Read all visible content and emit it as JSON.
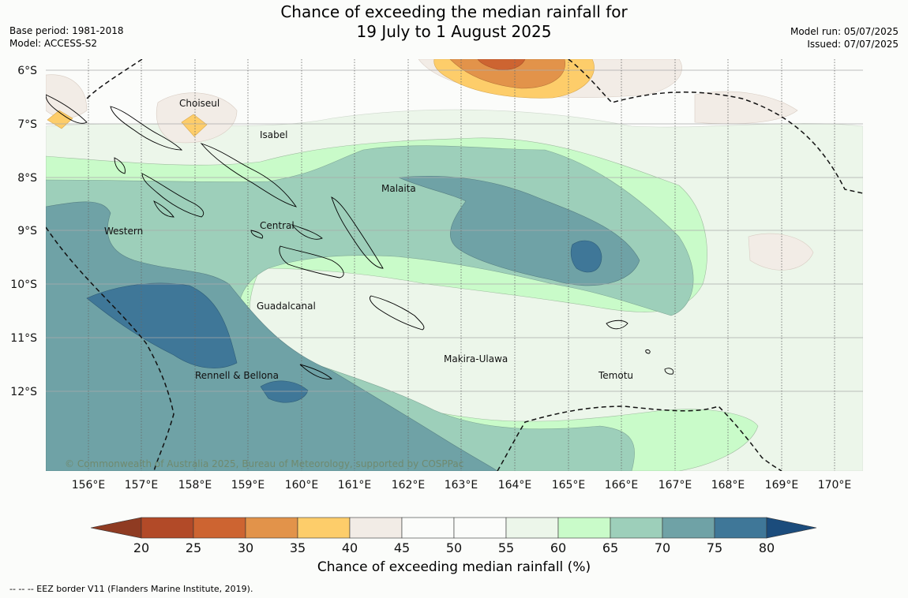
{
  "header": {
    "title_line1": "Chance of exceeding the median rainfall for",
    "title_line2": "19 July to 1 August 2025",
    "base_period": "Base period: 1981-2018",
    "model": "Model: ACCESS-S2",
    "model_run": "Model run: 05/07/2025",
    "issued": "Issued: 07/07/2025"
  },
  "map": {
    "region_labels": {
      "choiseul": "Choiseul",
      "isabel": "Isabel",
      "malaita": "Malaita",
      "western": "Western",
      "central": "Central",
      "guadalcanal": "Guadalcanal",
      "makira": "Makira-Ulawa",
      "rennell": "Rennell & Bellona",
      "temotu": "Temotu"
    },
    "lat_labels": [
      "6°S",
      "7°S",
      "8°S",
      "9°S",
      "10°S",
      "11°S",
      "12°S"
    ],
    "lon_labels": [
      "156°E",
      "157°E",
      "158°E",
      "159°E",
      "160°E",
      "161°E",
      "162°E",
      "163°E",
      "164°E",
      "165°E",
      "166°E",
      "167°E",
      "168°E",
      "169°E",
      "170°E"
    ],
    "copyright": "© Commonwealth of Australia 2025, Bureau of Meteorology, supported by COSPPac"
  },
  "colorbar": {
    "ticks": [
      "20",
      "25",
      "30",
      "35",
      "40",
      "45",
      "50",
      "55",
      "60",
      "65",
      "70",
      "75",
      "80"
    ],
    "colors": [
      "#b24a28",
      "#cd6431",
      "#e2934a",
      "#fdcd6a",
      "#f2ece6",
      "#fbfcfa",
      "#fbfcfa",
      "#ecf6ea",
      "#c9fbc9",
      "#9dcfba",
      "#6fa2a6",
      "#3f7798"
    ],
    "under_color": "#8f3b22",
    "over_color": "#1b4c7c",
    "label": "Chance of exceeding median rainfall (%)"
  },
  "footer": {
    "eez_note": "--  --  -- EEZ border V11 (Flanders Marine Institute, 2019)."
  }
}
